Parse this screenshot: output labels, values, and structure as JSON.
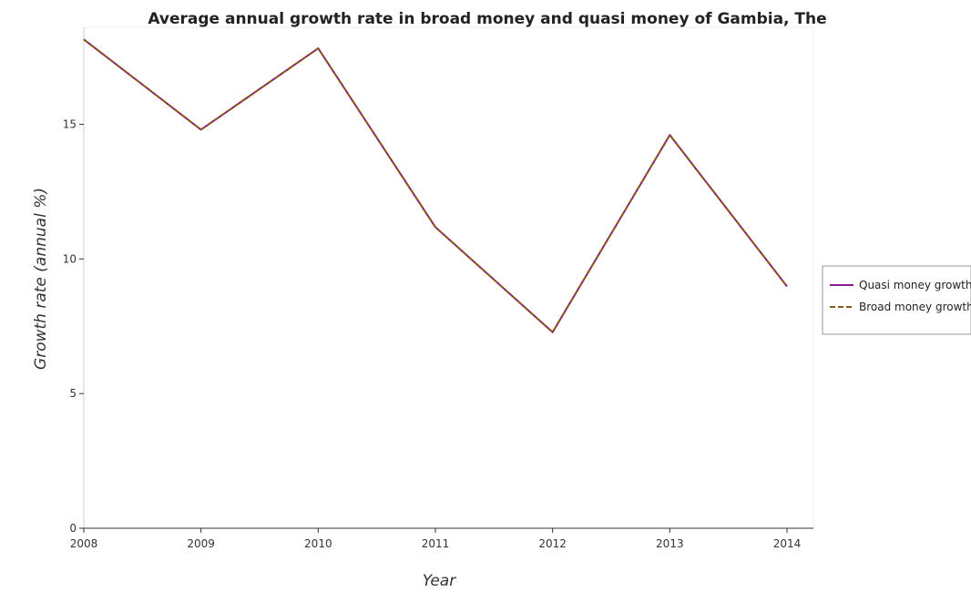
{
  "chart_data": {
    "type": "line",
    "title": "Average annual growth rate in broad money and quasi money of Gambia, The",
    "xlabel": "Year",
    "ylabel": "Growth rate (annual %)",
    "categories": [
      "2008",
      "2009",
      "2010",
      "2011",
      "2012",
      "2013",
      "2014"
    ],
    "ylim": [
      0,
      18.6
    ],
    "yticks": [
      0,
      5,
      10,
      15
    ],
    "grid": false,
    "legend_position": "right",
    "series": [
      {
        "name": "Quasi money growth",
        "color": "#8b1a8b",
        "dash": "solid",
        "values": [
          18.15,
          14.8,
          17.82,
          11.18,
          7.28,
          14.6,
          8.98
        ]
      },
      {
        "name": "Broad money growth",
        "color": "#8b5a14",
        "dash": "dashed",
        "values": [
          18.15,
          14.8,
          17.82,
          11.18,
          7.28,
          14.6,
          8.98
        ]
      }
    ]
  }
}
